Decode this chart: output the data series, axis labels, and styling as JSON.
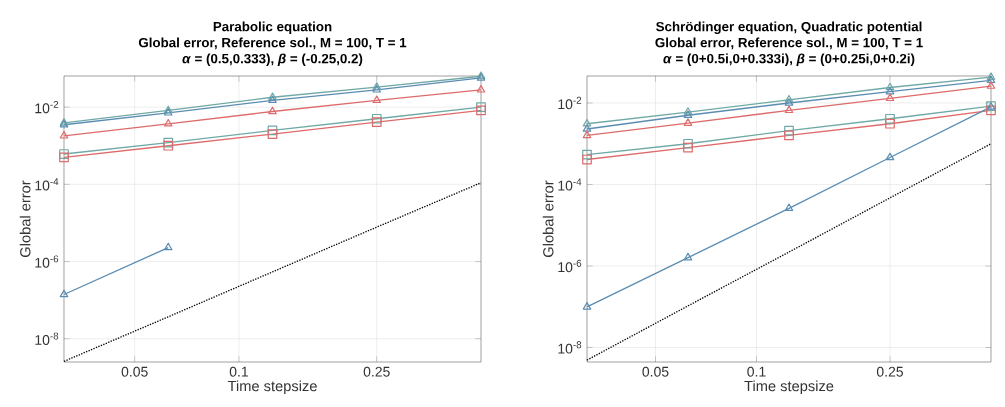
{
  "chart_data": [
    {
      "type": "line",
      "title": "Parabolic equation",
      "subtitle": "Global error, Reference sol., M = 100, T = 1",
      "annotations": [
        "*α* = (0.5,0.333), *β* = (-0.25,0.2)"
      ],
      "xlabel": "Time stepsize",
      "ylabel": "Global error",
      "log": "xy",
      "grid": true,
      "x": [
        0.03125,
        0.0625,
        0.125,
        0.25,
        0.5
      ],
      "xlim": [
        0.03125,
        0.5
      ],
      "ylim": [
        2.5e-09,
        0.064
      ],
      "xticks": [
        0.05,
        0.1,
        0.25
      ],
      "yticks": [
        {
          "value": 1e-08,
          "label": "10$^{-8}$"
        },
        {
          "value": 1e-06,
          "label": "10$^{-6}$"
        },
        {
          "value": 0.0001,
          "label": "10$^{-4}$"
        },
        {
          "value": 0.01,
          "label": "10$^{-2}$"
        }
      ],
      "series": [
        {
          "color": "#6fa9a6",
          "marker": "triangle",
          "values": [
            0.0039,
            0.0082,
            0.018,
            0.033,
            0.063
          ]
        },
        {
          "color": "#5b8cb2",
          "marker": "triangle",
          "values": [
            0.0035,
            0.0071,
            0.015,
            0.028,
            0.057
          ]
        },
        {
          "color": "#de6b6b",
          "marker": "triangle",
          "values": [
            0.0018,
            0.0037,
            0.0077,
            0.015,
            0.028
          ]
        },
        {
          "color": "#6fa9a6",
          "marker": "square",
          "values": [
            0.00061,
            0.0012,
            0.0025,
            0.005,
            0.01
          ]
        },
        {
          "color": "#de6b6b",
          "marker": "square",
          "values": [
            0.0005,
            0.001,
            0.002,
            0.0041,
            0.0082
          ]
        },
        {
          "color": "#5b8cb2",
          "marker": "triangle",
          "values": [
            1.4e-07,
            2.3e-06,
            null,
            null,
            null
          ]
        },
        {
          "color": "#000000",
          "marker": "none",
          "line_style": "dotted",
          "values": [
            2.6e-09,
            3.7e-08,
            5.4e-07,
            7.8e-06,
            0.00011
          ]
        }
      ]
    },
    {
      "type": "line",
      "title": "Schrödinger equation, Quadratic potential",
      "subtitle": "Global error, Reference sol., M = 100, T = 1",
      "annotations": [
        "*α* = (0+0.5i,0+0.333i), *β* = (0+0.25i,0+0.2i)"
      ],
      "xlabel": "Time stepsize",
      "ylabel": "Global error",
      "log": "xy",
      "grid": true,
      "x": [
        0.03125,
        0.0625,
        0.125,
        0.25,
        0.5
      ],
      "xlim": [
        0.03125,
        0.5
      ],
      "ylim": [
        4.4e-09,
        0.046
      ],
      "xticks": [
        0.05,
        0.1,
        0.25
      ],
      "yticks": [
        {
          "value": 1e-08,
          "label": "10$^{-8}$"
        },
        {
          "value": 1e-06,
          "label": "10$^{-6}$"
        },
        {
          "value": 0.0001,
          "label": "10$^{-4}$"
        },
        {
          "value": 0.01,
          "label": "10$^{-2}$"
        }
      ],
      "series": [
        {
          "color": "#6fa9a6",
          "marker": "triangle",
          "values": [
            0.0031,
            0.006,
            0.012,
            0.024,
            0.043
          ]
        },
        {
          "color": "#5b8cb2",
          "marker": "triangle",
          "values": [
            0.0023,
            0.005,
            0.01,
            0.019,
            0.036
          ]
        },
        {
          "color": "#de6b6b",
          "marker": "triangle",
          "values": [
            0.0016,
            0.0032,
            0.0066,
            0.013,
            0.026
          ]
        },
        {
          "color": "#6fa9a6",
          "marker": "square",
          "values": [
            0.00054,
            0.001,
            0.0021,
            0.0041,
            0.0084
          ]
        },
        {
          "color": "#de6b6b",
          "marker": "square",
          "values": [
            0.00041,
            0.0008,
            0.0016,
            0.0031,
            0.0066
          ]
        },
        {
          "color": "#5b8cb2",
          "marker": "triangle",
          "values": [
            9.9e-08,
            1.6e-06,
            2.6e-05,
            0.00046,
            0.008
          ]
        },
        {
          "color": "#000000",
          "marker": "none",
          "line_style": "dotted",
          "values": [
            4.9e-09,
            1.05e-07,
            2.2e-06,
            4.7e-05,
            0.001
          ]
        }
      ]
    }
  ]
}
